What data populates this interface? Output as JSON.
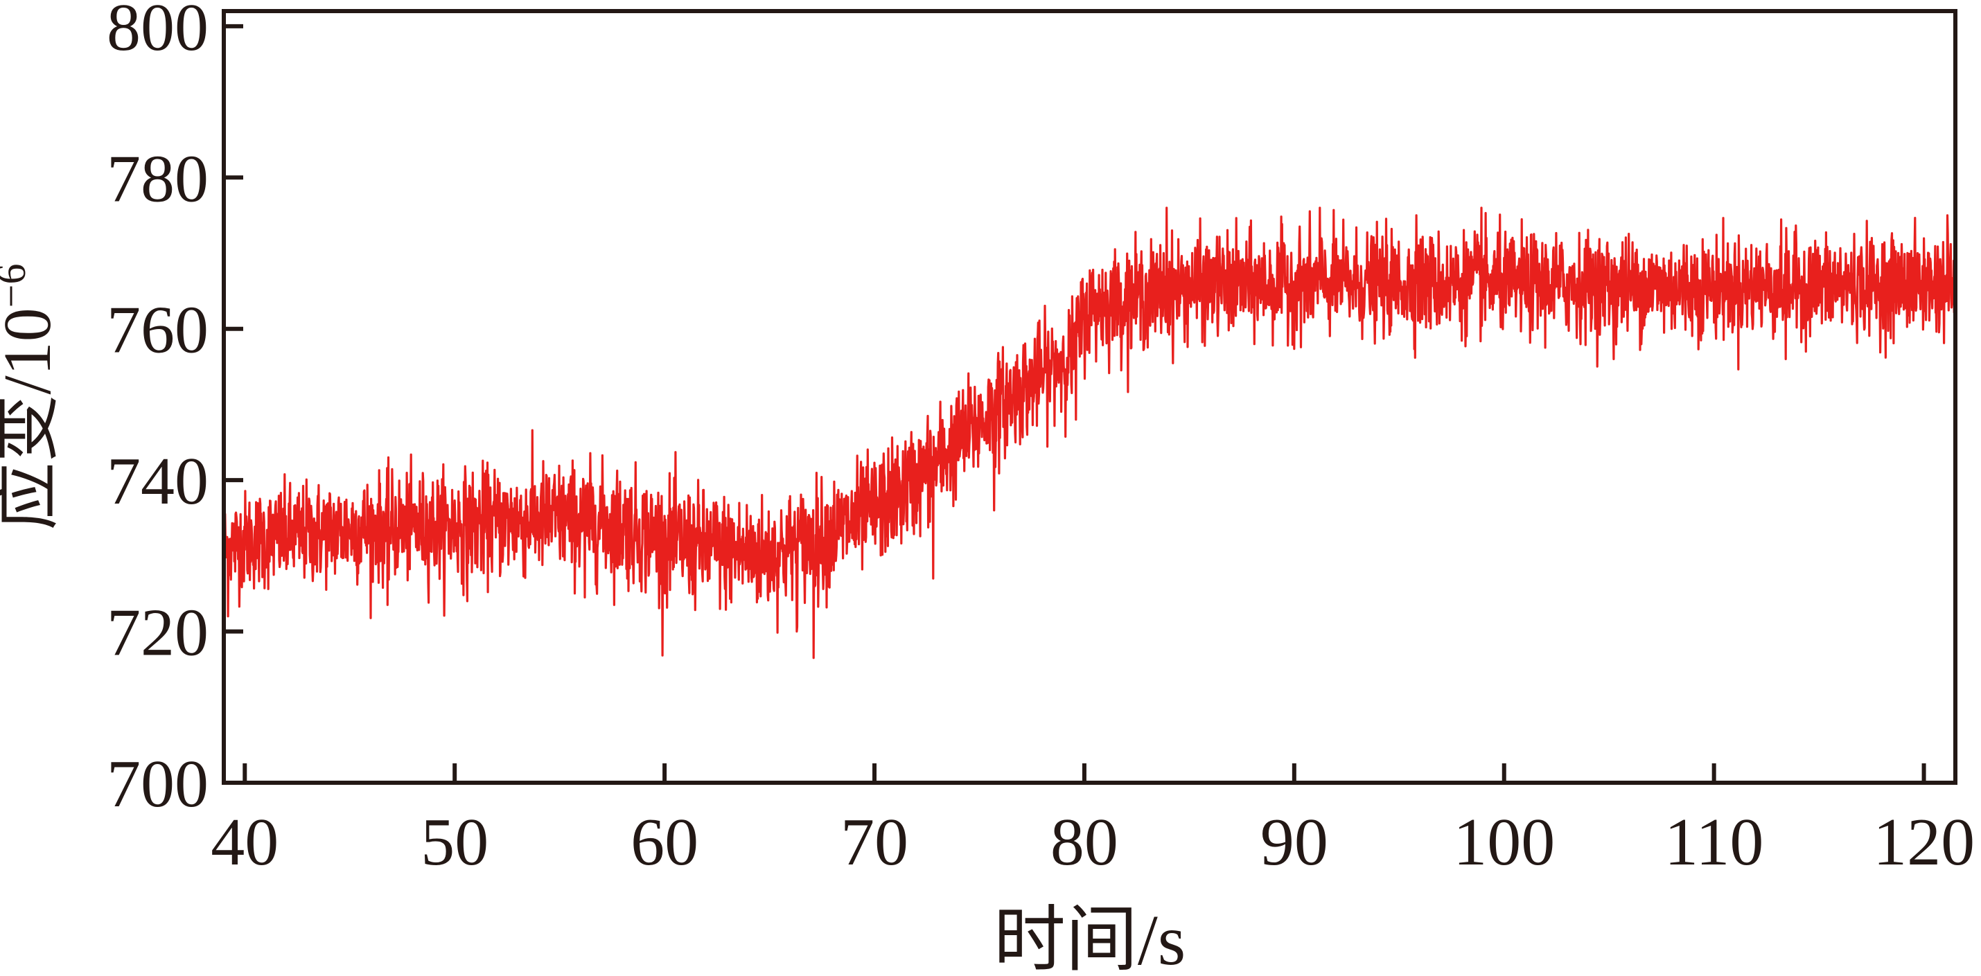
{
  "chart_data": {
    "type": "line",
    "title": "",
    "xlabel": "时间/s",
    "ylabel": "应变/10",
    "ylabel_sup": "−6",
    "xlim": [
      39,
      121.5
    ],
    "ylim": [
      700,
      802
    ],
    "x_ticks": [
      40,
      50,
      60,
      70,
      80,
      90,
      100,
      110,
      120
    ],
    "y_ticks": [
      700,
      720,
      740,
      760,
      780,
      800
    ],
    "grid": false,
    "legend": "none",
    "sample_interval_s": 0.02,
    "series": [
      {
        "color": "#e8201d",
        "baseline": {
          "x": [
            39,
            40,
            45,
            50,
            55,
            58,
            60,
            62,
            65,
            67,
            68,
            70,
            72,
            74,
            76,
            78,
            79.5,
            80,
            80.5,
            82,
            85,
            90,
            100,
            110,
            121.5
          ],
          "y": [
            731,
            732,
            733.5,
            734,
            735,
            734,
            732,
            731,
            730,
            732,
            733,
            736,
            740,
            745,
            750,
            754,
            757,
            762,
            763,
            764,
            765.5,
            766,
            766,
            765.5,
            766
          ]
        },
        "noise_amplitude": {
          "x": [
            39,
            60,
            70,
            80,
            121.5
          ],
          "y": [
            3.2,
            3.8,
            3.6,
            3.3,
            3.2
          ]
        },
        "spikes": [
          {
            "x": 39.2,
            "y": 722
          },
          {
            "x": 46.8,
            "y": 723.5
          },
          {
            "x": 50.6,
            "y": 724
          },
          {
            "x": 56.2,
            "y": 724.5
          },
          {
            "x": 67.1,
            "y": 716.5
          },
          {
            "x": 66.3,
            "y": 720
          },
          {
            "x": 72.8,
            "y": 727
          },
          {
            "x": 75.7,
            "y": 736
          },
          {
            "x": 79.6,
            "y": 748
          },
          {
            "x": 83.9,
            "y": 776
          },
          {
            "x": 91.2,
            "y": 776
          },
          {
            "x": 98.9,
            "y": 776
          },
          {
            "x": 95.8,
            "y": 775
          },
          {
            "x": 105.2,
            "y": 756
          },
          {
            "x": 113.4,
            "y": 756
          },
          {
            "x": 121.1,
            "y": 775
          }
        ]
      }
    ]
  }
}
